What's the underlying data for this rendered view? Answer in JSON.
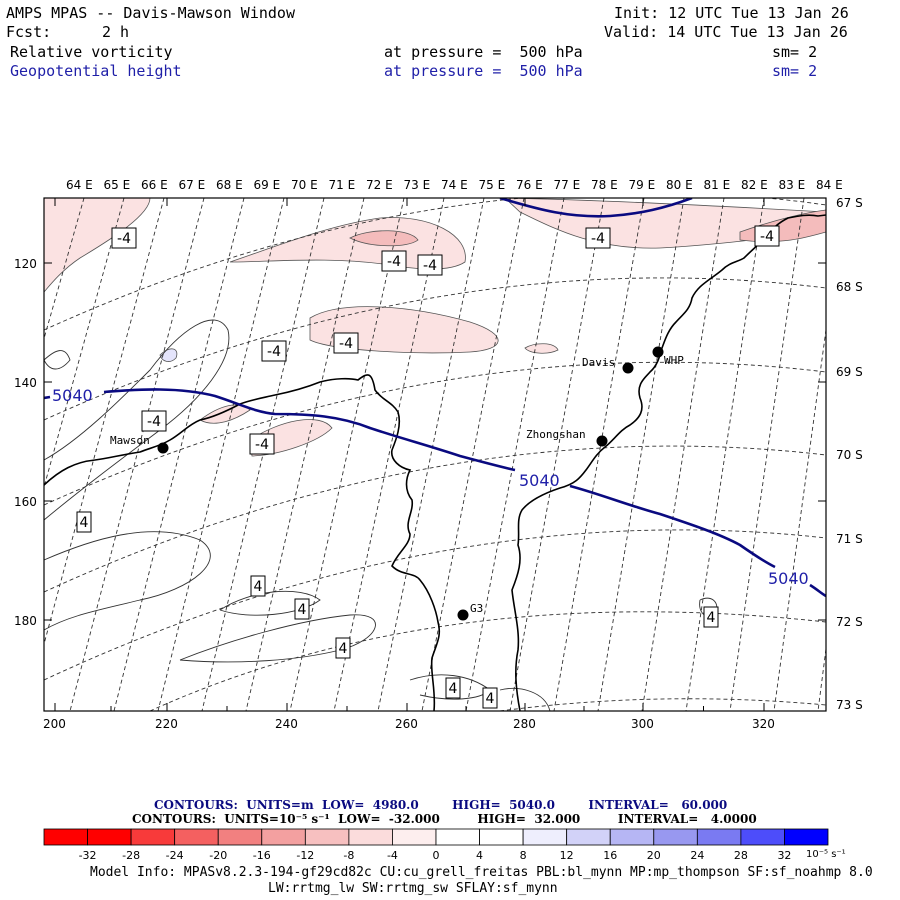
{
  "header": {
    "title": "AMPS MPAS -- Davis-Mawson Window",
    "init": "Init: 12 UTC Tue 13 Jan 26",
    "fcst_label": "Fcst:",
    "fcst_value": "2 h",
    "valid": "Valid: 14 UTC Tue 13 Jan 26",
    "field1": "Relative vorticity",
    "field1_level": "at pressure =  500 hPa",
    "field1_sm": "sm= 2",
    "field2": "Geopotential height",
    "field2_level": "at pressure =  500 hPa",
    "field2_sm": "sm= 2"
  },
  "axes": {
    "lon_labels": [
      "64 E",
      "65 E",
      "66 E",
      "67 E",
      "68 E",
      "69 E",
      "70 E",
      "71 E",
      "72 E",
      "73 E",
      "74 E",
      "75 E",
      "76 E",
      "77 E",
      "78 E",
      "79 E",
      "80 E",
      "81 E",
      "82 E",
      "83 E",
      "84 E"
    ],
    "lat_labels": [
      "67 S",
      "68 S",
      "69 S",
      "70 S",
      "71 S",
      "72 S",
      "73 S"
    ],
    "x_ticks": [
      "200",
      "220",
      "240",
      "260",
      "280",
      "300",
      "320"
    ],
    "y_ticks": [
      "120",
      "140",
      "160",
      "180"
    ]
  },
  "stations": [
    {
      "name": "Mawson"
    },
    {
      "name": "Davis"
    },
    {
      "name": "WHP"
    },
    {
      "name": "Zhongshan"
    },
    {
      "name": "G3"
    }
  ],
  "contour_labels": {
    "height": [
      "5040",
      "5040",
      "5040"
    ],
    "vorticity": [
      "-4",
      "-4",
      "-4",
      "-4",
      "-4",
      "-4",
      "-4",
      "-4",
      "-4",
      "4",
      "4",
      "4",
      "4",
      "4",
      "4",
      "4"
    ]
  },
  "legend": {
    "contours1": "CONTOURS:  UNITS=m  LOW=  4980.0        HIGH=  5040.0        INTERVAL=   60.000",
    "contours2": "CONTOURS:  UNITS=10⁻⁵ s⁻¹  LOW=  -32.000         HIGH=  32.000         INTERVAL=   4.0000",
    "colorbar_labels": [
      "-32",
      "-28",
      "-24",
      "-20",
      "-16",
      "-12",
      "-8",
      "-4",
      "0",
      "4",
      "8",
      "12",
      "16",
      "20",
      "24",
      "28",
      "32"
    ],
    "colorbar_unit": "10⁻⁵ s⁻¹",
    "colorbar_colors": [
      "#ff0000",
      "#f83a3a",
      "#f46060",
      "#f28080",
      "#f3a0a0",
      "#f7c0c0",
      "#fbdcdc",
      "#fdeeee",
      "#ffffff",
      "#ffffff",
      "#eeeefd",
      "#d2d2f8",
      "#b6b6f4",
      "#9898f0",
      "#7a7af2",
      "#4d4dfa",
      "#0000ff"
    ]
  },
  "model_info": {
    "line1": "Model Info: MPASv8.2.3-194-gf29cd82c CU:cu_grell_freitas PBL:bl_mynn MP:mp_thompson SF:sf_noahmp 8.0",
    "line2": "LW:rrtmg_lw SW:rrtmg_sw SFLAY:sf_mynn"
  }
}
